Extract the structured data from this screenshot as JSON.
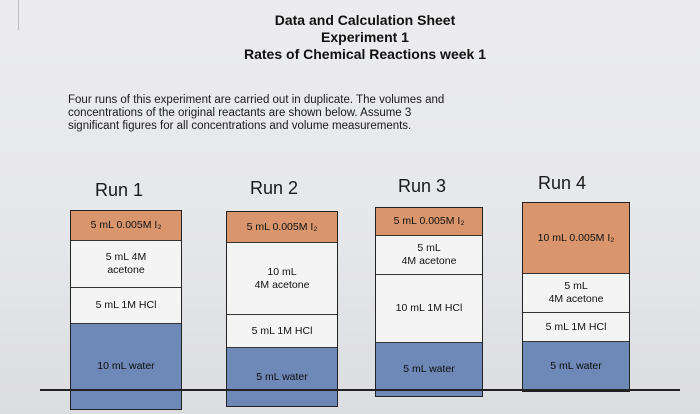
{
  "header": {
    "title": "Data and Calculation Sheet",
    "experiment": "Experiment 1",
    "subtitle": "Rates of Chemical Reactions week 1"
  },
  "intro": {
    "line1": "Four runs of this experiment are carried out in duplicate.  The volumes and",
    "line2": "concentrations of the original reactants are shown below.  Assume 3",
    "line3": "significant figures for all concentrations and volume measurements."
  },
  "runs": [
    {
      "name": "Run 1",
      "cells": [
        {
          "type": "iodine",
          "lines": [
            "5 mL 0.005M I₂"
          ],
          "h": 0.15
        },
        {
          "type": "acetone",
          "lines": [
            "5 mL 4M",
            "acetone"
          ],
          "h": 0.235
        },
        {
          "type": "hcl",
          "lines": [
            "5 mL 1M HCl"
          ],
          "h": 0.18
        },
        {
          "type": "water",
          "lines": [
            "10 mL water"
          ],
          "h": 0.435
        }
      ]
    },
    {
      "name": "Run 2",
      "cells": [
        {
          "type": "iodine",
          "lines": [
            "5 mL 0.005M I₂"
          ],
          "h": 0.16
        },
        {
          "type": "acetone",
          "lines": [
            "10 mL",
            "4M acetone"
          ],
          "h": 0.37
        },
        {
          "type": "hcl",
          "lines": [
            "5 mL 1M HCl"
          ],
          "h": 0.17
        },
        {
          "type": "water",
          "lines": [
            "5 mL water"
          ],
          "h": 0.3
        }
      ]
    },
    {
      "name": "Run 3",
      "cells": [
        {
          "type": "iodine",
          "lines": [
            "5 mL 0.005M I₂"
          ],
          "h": 0.15
        },
        {
          "type": "acetone",
          "lines": [
            "5 mL",
            "4M acetone"
          ],
          "h": 0.21
        },
        {
          "type": "hcl",
          "lines": [
            "10 mL 1M HCl"
          ],
          "h": 0.36
        },
        {
          "type": "water",
          "lines": [
            "5 mL water"
          ],
          "h": 0.28
        }
      ]
    },
    {
      "name": "Run 4",
      "cells": [
        {
          "type": "iodine",
          "lines": [
            "10 mL 0.005M I₂"
          ],
          "h": 0.375
        },
        {
          "type": "acetone",
          "lines": [
            "5 mL",
            "4M acetone"
          ],
          "h": 0.21
        },
        {
          "type": "hcl",
          "lines": [
            "5 mL 1M HCl"
          ],
          "h": 0.155
        },
        {
          "type": "water",
          "lines": [
            "5 mL water"
          ],
          "h": 0.26
        }
      ]
    }
  ],
  "colors": {
    "iodine": "#d9966d",
    "water": "#6e89b7",
    "plain": "#f4f4f4"
  }
}
